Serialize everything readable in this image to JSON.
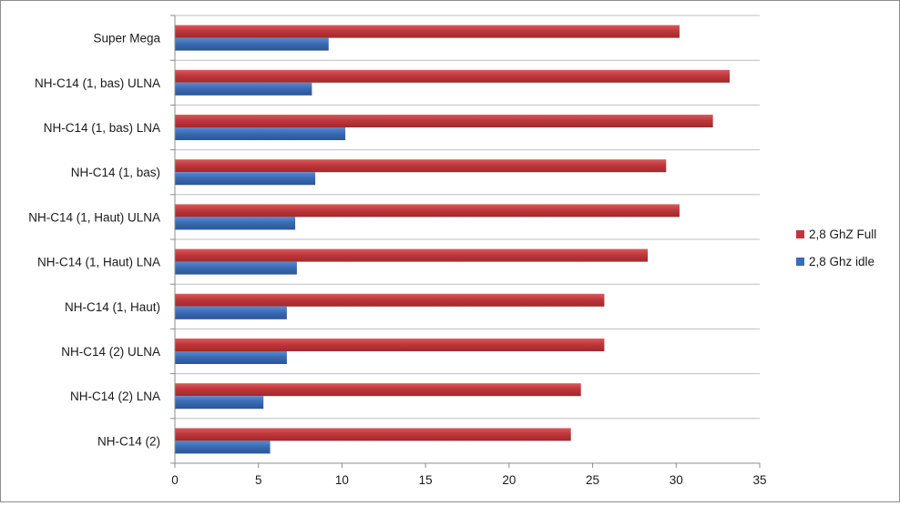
{
  "chart_data": {
    "type": "bar",
    "orientation": "horizontal",
    "categories": [
      "NH-C14 (2)",
      "NH-C14 (2) LNA",
      "NH-C14 (2) ULNA",
      "NH-C14 (1, Haut)",
      "NH-C14 (1, Haut) LNA",
      "NH-C14 (1, Haut) ULNA",
      "NH-C14 (1, bas)",
      "NH-C14 (1, bas) LNA",
      "NH-C14 (1, bas) ULNA",
      "Super Mega"
    ],
    "series": [
      {
        "name": "2,8 GhZ Full",
        "color": "#c0373b",
        "values": [
          23.7,
          24.3,
          25.7,
          25.7,
          28.3,
          30.2,
          29.4,
          32.2,
          33.2,
          30.2
        ]
      },
      {
        "name": "2,8 Ghz idle",
        "color": "#3a6bb5",
        "values": [
          5.7,
          5.3,
          6.7,
          6.7,
          7.3,
          7.2,
          8.4,
          10.2,
          8.2,
          9.2
        ]
      }
    ],
    "xlim": [
      0,
      35
    ],
    "xticks": [
      0,
      5,
      10,
      15,
      20,
      25,
      30,
      35
    ],
    "grid": true,
    "legend_position": "right",
    "title": "",
    "xlabel": "",
    "ylabel": ""
  }
}
